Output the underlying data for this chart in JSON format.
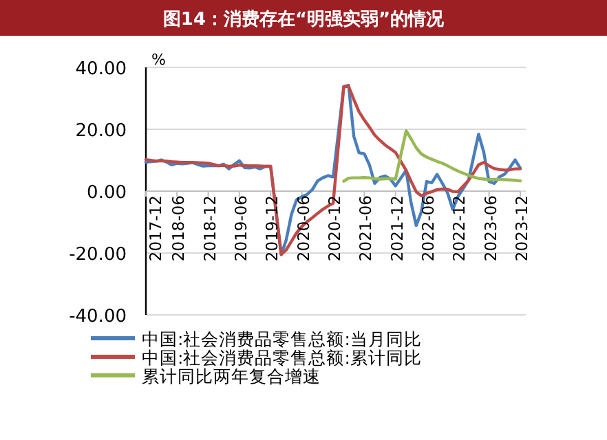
{
  "chart_data": {
    "type": "line",
    "title": "图14：消费存在“明强实弱”的情况",
    "ylabel": "%",
    "x": [
      "2017-12",
      "2018-02",
      "2018-03",
      "2018-04",
      "2018-05",
      "2018-06",
      "2018-07",
      "2018-08",
      "2018-09",
      "2018-10",
      "2018-11",
      "2018-12",
      "2019-02",
      "2019-03",
      "2019-04",
      "2019-05",
      "2019-06",
      "2019-07",
      "2019-08",
      "2019-09",
      "2019-10",
      "2019-11",
      "2019-12",
      "2020-02",
      "2020-03",
      "2020-04",
      "2020-05",
      "2020-06",
      "2020-07",
      "2020-08",
      "2020-09",
      "2020-10",
      "2020-11",
      "2020-12",
      "2021-02",
      "2021-03",
      "2021-04",
      "2021-05",
      "2021-06",
      "2021-07",
      "2021-08",
      "2021-09",
      "2021-10",
      "2021-11",
      "2021-12",
      "2022-02",
      "2022-03",
      "2022-04",
      "2022-05",
      "2022-06",
      "2022-07",
      "2022-08",
      "2022-09",
      "2022-10",
      "2022-11",
      "2022-12",
      "2023-02",
      "2023-03",
      "2023-04",
      "2023-05",
      "2023-06",
      "2023-07",
      "2023-08",
      "2023-09",
      "2023-10",
      "2023-11",
      "2023-12"
    ],
    "series": [
      {
        "name": "中国:社会消费品零售总额:当月同比",
        "color": "#4a7ebb",
        "values": [
          9.4,
          9.7,
          10.1,
          9.4,
          8.5,
          9.0,
          8.8,
          9.0,
          9.2,
          8.6,
          8.1,
          8.2,
          8.2,
          8.7,
          7.2,
          8.6,
          9.8,
          7.6,
          7.5,
          7.8,
          7.2,
          8.0,
          8.0,
          -20.5,
          -15.8,
          -7.5,
          -2.8,
          -1.8,
          -1.1,
          0.5,
          3.3,
          4.3,
          5.0,
          4.6,
          33.8,
          34.2,
          17.7,
          12.4,
          12.1,
          8.5,
          2.5,
          4.4,
          4.9,
          3.9,
          1.7,
          6.7,
          -3.5,
          -11.1,
          -6.7,
          3.1,
          2.7,
          5.4,
          2.5,
          -0.5,
          -5.9,
          -1.8,
          3.5,
          10.6,
          18.4,
          12.7,
          3.1,
          2.5,
          4.6,
          5.5,
          7.6,
          10.1,
          7.4
        ]
      },
      {
        "name": "中国:社会消费品零售总额:累计同比",
        "color": "#be4b48",
        "values": [
          10.2,
          9.7,
          9.8,
          9.7,
          9.5,
          9.4,
          9.3,
          9.3,
          9.3,
          9.2,
          9.1,
          9.0,
          8.2,
          8.3,
          8.0,
          8.1,
          8.4,
          8.3,
          8.2,
          8.2,
          8.1,
          8.0,
          8.0,
          -20.5,
          -19.0,
          -16.2,
          -13.5,
          -11.4,
          -9.9,
          -8.6,
          -7.2,
          -5.9,
          -4.8,
          -3.9,
          33.8,
          33.9,
          29.6,
          25.7,
          23.0,
          20.7,
          18.1,
          16.4,
          14.9,
          13.7,
          12.5,
          6.7,
          3.3,
          -0.2,
          -1.5,
          -0.7,
          -0.2,
          0.5,
          0.7,
          0.6,
          -0.1,
          -0.2,
          3.5,
          5.8,
          8.5,
          9.3,
          8.2,
          7.3,
          7.0,
          6.8,
          6.9,
          7.2,
          7.2
        ]
      },
      {
        "name": "累计同比两年复合增速",
        "color": "#98b954",
        "values": [
          null,
          null,
          null,
          null,
          null,
          null,
          null,
          null,
          null,
          null,
          null,
          null,
          null,
          null,
          null,
          null,
          null,
          null,
          null,
          null,
          null,
          null,
          null,
          null,
          null,
          null,
          null,
          null,
          null,
          null,
          null,
          null,
          null,
          null,
          3.2,
          4.2,
          4.3,
          4.3,
          4.4,
          4.3,
          4.0,
          3.9,
          4.0,
          4.0,
          3.9,
          19.5,
          17.0,
          14.0,
          12.0,
          11.0,
          10.3,
          9.6,
          9.0,
          8.2,
          7.3,
          6.5,
          5.1,
          4.6,
          4.1,
          3.9,
          3.7,
          3.8,
          3.8,
          3.7,
          3.6,
          3.5,
          3.3
        ]
      }
    ],
    "xlim": [
      "2017-12",
      "2023-12"
    ],
    "xticks": [
      {
        "value": "2017-12",
        "label": "2017-12"
      },
      {
        "value": "2018-06",
        "label": "2018-06"
      },
      {
        "value": "2018-12",
        "label": "2018-12"
      },
      {
        "value": "2019-06",
        "label": "2019-06"
      },
      {
        "value": "2019-12",
        "label": "2019-12"
      },
      {
        "value": "2020-06",
        "label": "2020-06"
      },
      {
        "value": "2020-12",
        "label": "2020-12"
      },
      {
        "value": "2021-06",
        "label": "2021-06"
      },
      {
        "value": "2021-12",
        "label": "2021-12"
      },
      {
        "value": "2022-06",
        "label": "2022-06"
      },
      {
        "value": "2022-12",
        "label": "2022-12"
      },
      {
        "value": "2023-06",
        "label": "2023-06"
      },
      {
        "value": "2023-12",
        "label": "2023-12"
      }
    ],
    "ylim": [
      -40,
      40
    ],
    "yticks": [
      {
        "value": -40,
        "label": "-40.00"
      },
      {
        "value": -20,
        "label": "-20.00"
      },
      {
        "value": 0,
        "label": "0.00"
      },
      {
        "value": 20,
        "label": "20.00"
      },
      {
        "value": 40,
        "label": "40.00"
      }
    ],
    "grid": "y",
    "legend": "bottom",
    "marker": "none",
    "line_style": "solid"
  }
}
